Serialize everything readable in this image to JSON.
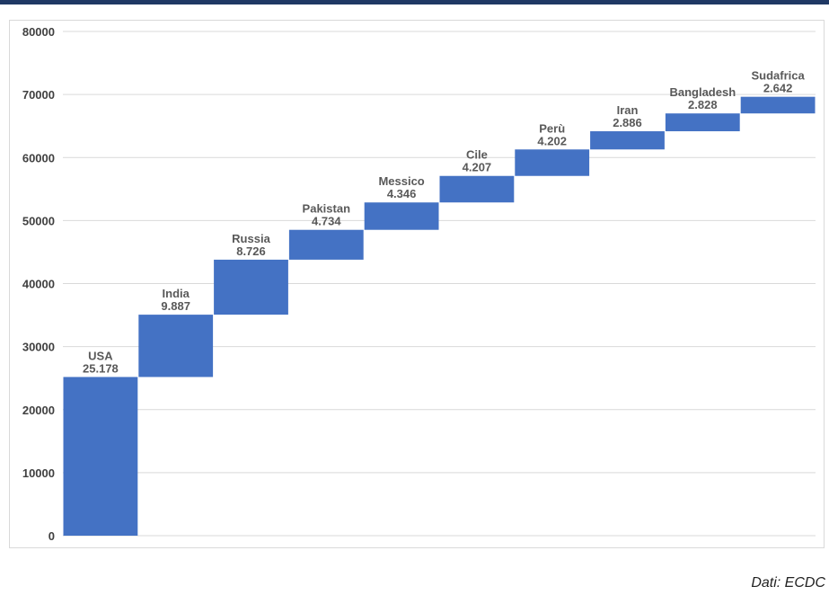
{
  "source": "Dati: ECDC",
  "colors": {
    "bar": "#4472c4",
    "grid": "#d9d9d9",
    "frame": "#1f3864"
  },
  "chart_data": {
    "type": "bar",
    "subtype": "waterfall",
    "categories": [
      "USA",
      "India",
      "Russia",
      "Pakistan",
      "Messico",
      "Cile",
      "Perù",
      "Iran",
      "Bangladesh",
      "Sudafrica"
    ],
    "values": [
      25178,
      9887,
      8726,
      4734,
      4346,
      4207,
      4202,
      2886,
      2828,
      2642
    ],
    "value_labels": [
      "25.178",
      "9.887",
      "8.726",
      "4.734",
      "4.346",
      "4.207",
      "4.202",
      "2.886",
      "2.828",
      "2.642"
    ],
    "ylim": [
      0,
      80000
    ],
    "yticks": [
      0,
      10000,
      20000,
      30000,
      40000,
      50000,
      60000,
      70000,
      80000
    ],
    "grid": true,
    "legend": "none"
  }
}
